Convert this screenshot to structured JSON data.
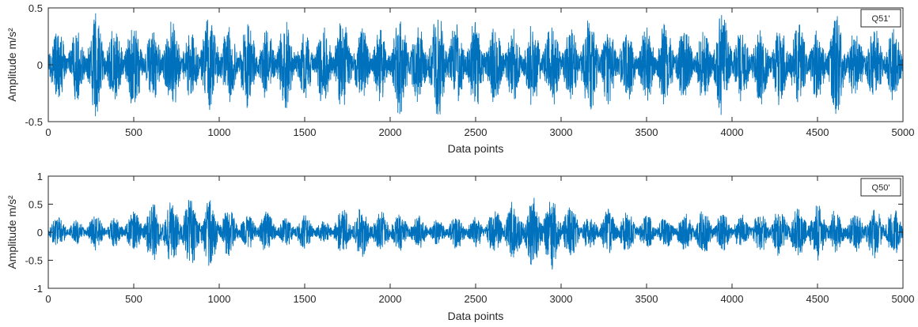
{
  "chart_data": [
    {
      "type": "line",
      "xlabel": "Data points",
      "ylabel": "Amplitude m/s²",
      "xlim": [
        0,
        5000
      ],
      "ylim": [
        -0.5,
        0.5
      ],
      "xticks": [
        "0",
        "500",
        "1000",
        "1500",
        "2000",
        "2500",
        "3000",
        "3500",
        "4000",
        "4500",
        "5000"
      ],
      "yticks": [
        "0.5",
        "0",
        "-0.5"
      ],
      "legend_position": "top-right",
      "grid": false,
      "line_color": "#0072BD",
      "series": [
        {
          "name": "Q51'",
          "signal": "vibration acceleration, 5000 samples",
          "typical_envelope": 0.3,
          "peak_range": [
            -0.47,
            0.47
          ],
          "burst_amplitudes": [
            0.32,
            0.3,
            0.42,
            0.33,
            0.4,
            0.3,
            0.4,
            0.29,
            0.44,
            0.32,
            0.36,
            0.3,
            0.38,
            0.3,
            0.34,
            0.4,
            0.32,
            0.3,
            0.44,
            0.33,
            0.46,
            0.35,
            0.39,
            0.33,
            0.3,
            0.34,
            0.36,
            0.3,
            0.43,
            0.34,
            0.32,
            0.31,
            0.36,
            0.33,
            0.3,
            0.44,
            0.31,
            0.33,
            0.34,
            0.35,
            0.3,
            0.4,
            0.3,
            0.34,
            0.3
          ]
        }
      ]
    },
    {
      "type": "line",
      "xlabel": "Data points",
      "ylabel": "Amplitude m/s²",
      "xlim": [
        0,
        5000
      ],
      "ylim": [
        -1,
        1
      ],
      "xticks": [
        "0",
        "500",
        "1000",
        "1500",
        "2000",
        "2500",
        "3000",
        "3500",
        "4000",
        "4500",
        "5000"
      ],
      "yticks": [
        "1",
        "0.5",
        "0",
        "-0.5",
        "-1"
      ],
      "legend_position": "top-right",
      "grid": false,
      "line_color": "#0072BD",
      "series": [
        {
          "name": "Q50'",
          "signal": "vibration acceleration, 5000 samples",
          "typical_envelope": 0.3,
          "peak_range": [
            -0.72,
            0.62
          ],
          "burst_amplitudes": [
            0.28,
            0.2,
            0.3,
            0.25,
            0.36,
            0.5,
            0.55,
            0.6,
            0.58,
            0.4,
            0.3,
            0.36,
            0.25,
            0.3,
            0.2,
            0.4,
            0.42,
            0.38,
            0.34,
            0.3,
            0.22,
            0.3,
            0.26,
            0.38,
            0.55,
            0.6,
            0.62,
            0.45,
            0.3,
            0.4,
            0.38,
            0.3,
            0.28,
            0.35,
            0.4,
            0.34,
            0.3,
            0.36,
            0.4,
            0.45,
            0.5,
            0.4,
            0.35,
            0.45,
            0.4
          ]
        }
      ]
    }
  ]
}
